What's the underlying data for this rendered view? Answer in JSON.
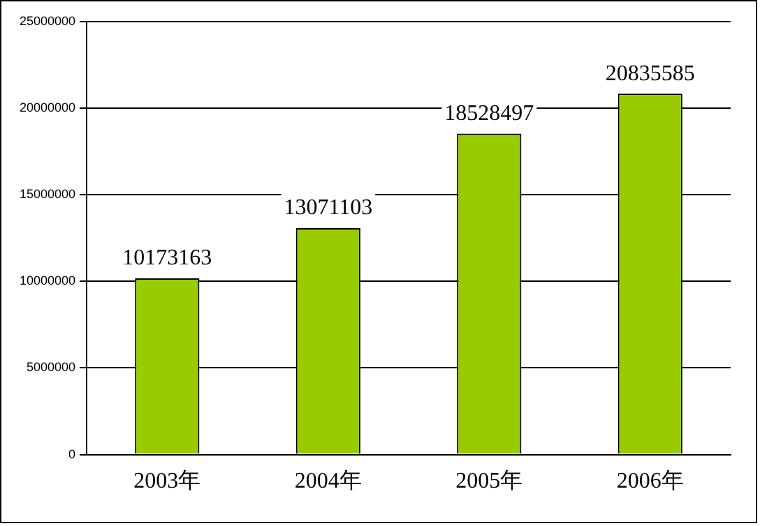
{
  "chart_data": {
    "type": "bar",
    "categories": [
      "2003年",
      "2004年",
      "2005年",
      "2006年"
    ],
    "values": [
      10173163,
      13071103,
      18528497,
      20835585
    ],
    "color": "#99cc00",
    "ylim": [
      0,
      25000000
    ],
    "yticks": [
      0,
      5000000,
      10000000,
      15000000,
      20000000,
      25000000
    ],
    "grid": "y",
    "data_labels": true,
    "legend": false
  }
}
